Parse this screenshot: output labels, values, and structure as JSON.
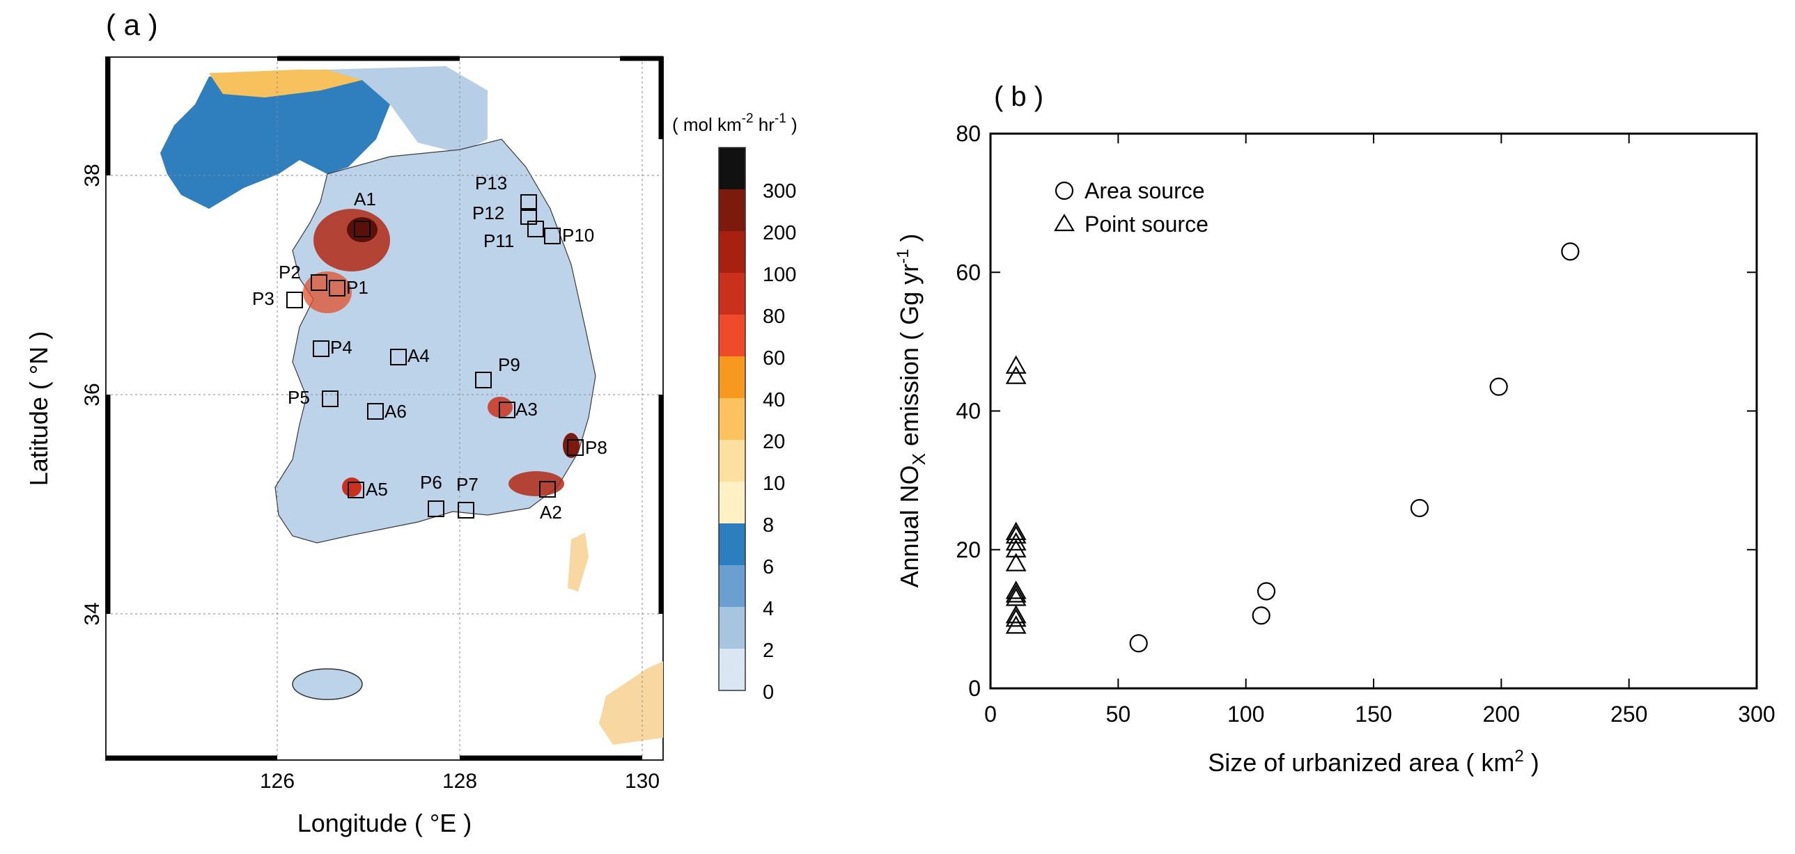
{
  "panel_a": {
    "label": "( a )",
    "xlabel": "Longitude ( °E )",
    "ylabel": "Latitude ( °N )",
    "lon_ticks": [
      "126",
      "128",
      "130"
    ],
    "lat_ticks": [
      "38",
      "36",
      "34"
    ],
    "colorbar": {
      "unit_prefix": "( mol km",
      "unit_exp1": "-2",
      "unit_mid": " hr",
      "unit_exp2": "-1",
      "unit_suffix": " )",
      "tick_labels": [
        "300",
        "200",
        "100",
        "80",
        "60",
        "40",
        "20",
        "10",
        "8",
        "6",
        "4",
        "2",
        "0"
      ],
      "colors": [
        "#111111",
        "#7d1a0e",
        "#a8200f",
        "#c9311c",
        "#ee4b2b",
        "#f7991f",
        "#fbc25f",
        "#fde0a0",
        "#fff1c4",
        "#2b7fbf",
        "#6a9fcf",
        "#a8c5e0",
        "#dae7f2"
      ]
    },
    "site_labels": [
      "A1",
      "A2",
      "A3",
      "A4",
      "A5",
      "A6",
      "P1",
      "P2",
      "P3",
      "P4",
      "P5",
      "P6",
      "P7",
      "P8",
      "P9",
      "P10",
      "P11",
      "P12",
      "P13"
    ]
  },
  "chart_data": {
    "type": "scatter",
    "panel_label": "( b )",
    "title": "",
    "xlabel": "Size of urbanized area ( km² )",
    "ylabel": "Annual NOX emission ( Gg yr-1 )",
    "xlim": [
      0,
      300
    ],
    "ylim": [
      0,
      80
    ],
    "xticks": [
      0,
      50,
      100,
      150,
      200,
      250,
      300
    ],
    "yticks": [
      0,
      20,
      40,
      60,
      80
    ],
    "legend_position": "top-left",
    "series": [
      {
        "name": "Area source",
        "marker": "circle",
        "x": [
          58,
          106,
          108,
          168,
          199,
          227
        ],
        "y": [
          6.5,
          10.5,
          14,
          26,
          43.5,
          63
        ]
      },
      {
        "name": "Point source",
        "marker": "triangle",
        "x": [
          10,
          10,
          10,
          10,
          10,
          10,
          10,
          10,
          10,
          10,
          10,
          10,
          10
        ],
        "y": [
          46.5,
          45,
          22.5,
          22,
          21,
          20,
          18,
          14,
          13.5,
          13,
          10.5,
          10,
          9
        ]
      }
    ]
  }
}
